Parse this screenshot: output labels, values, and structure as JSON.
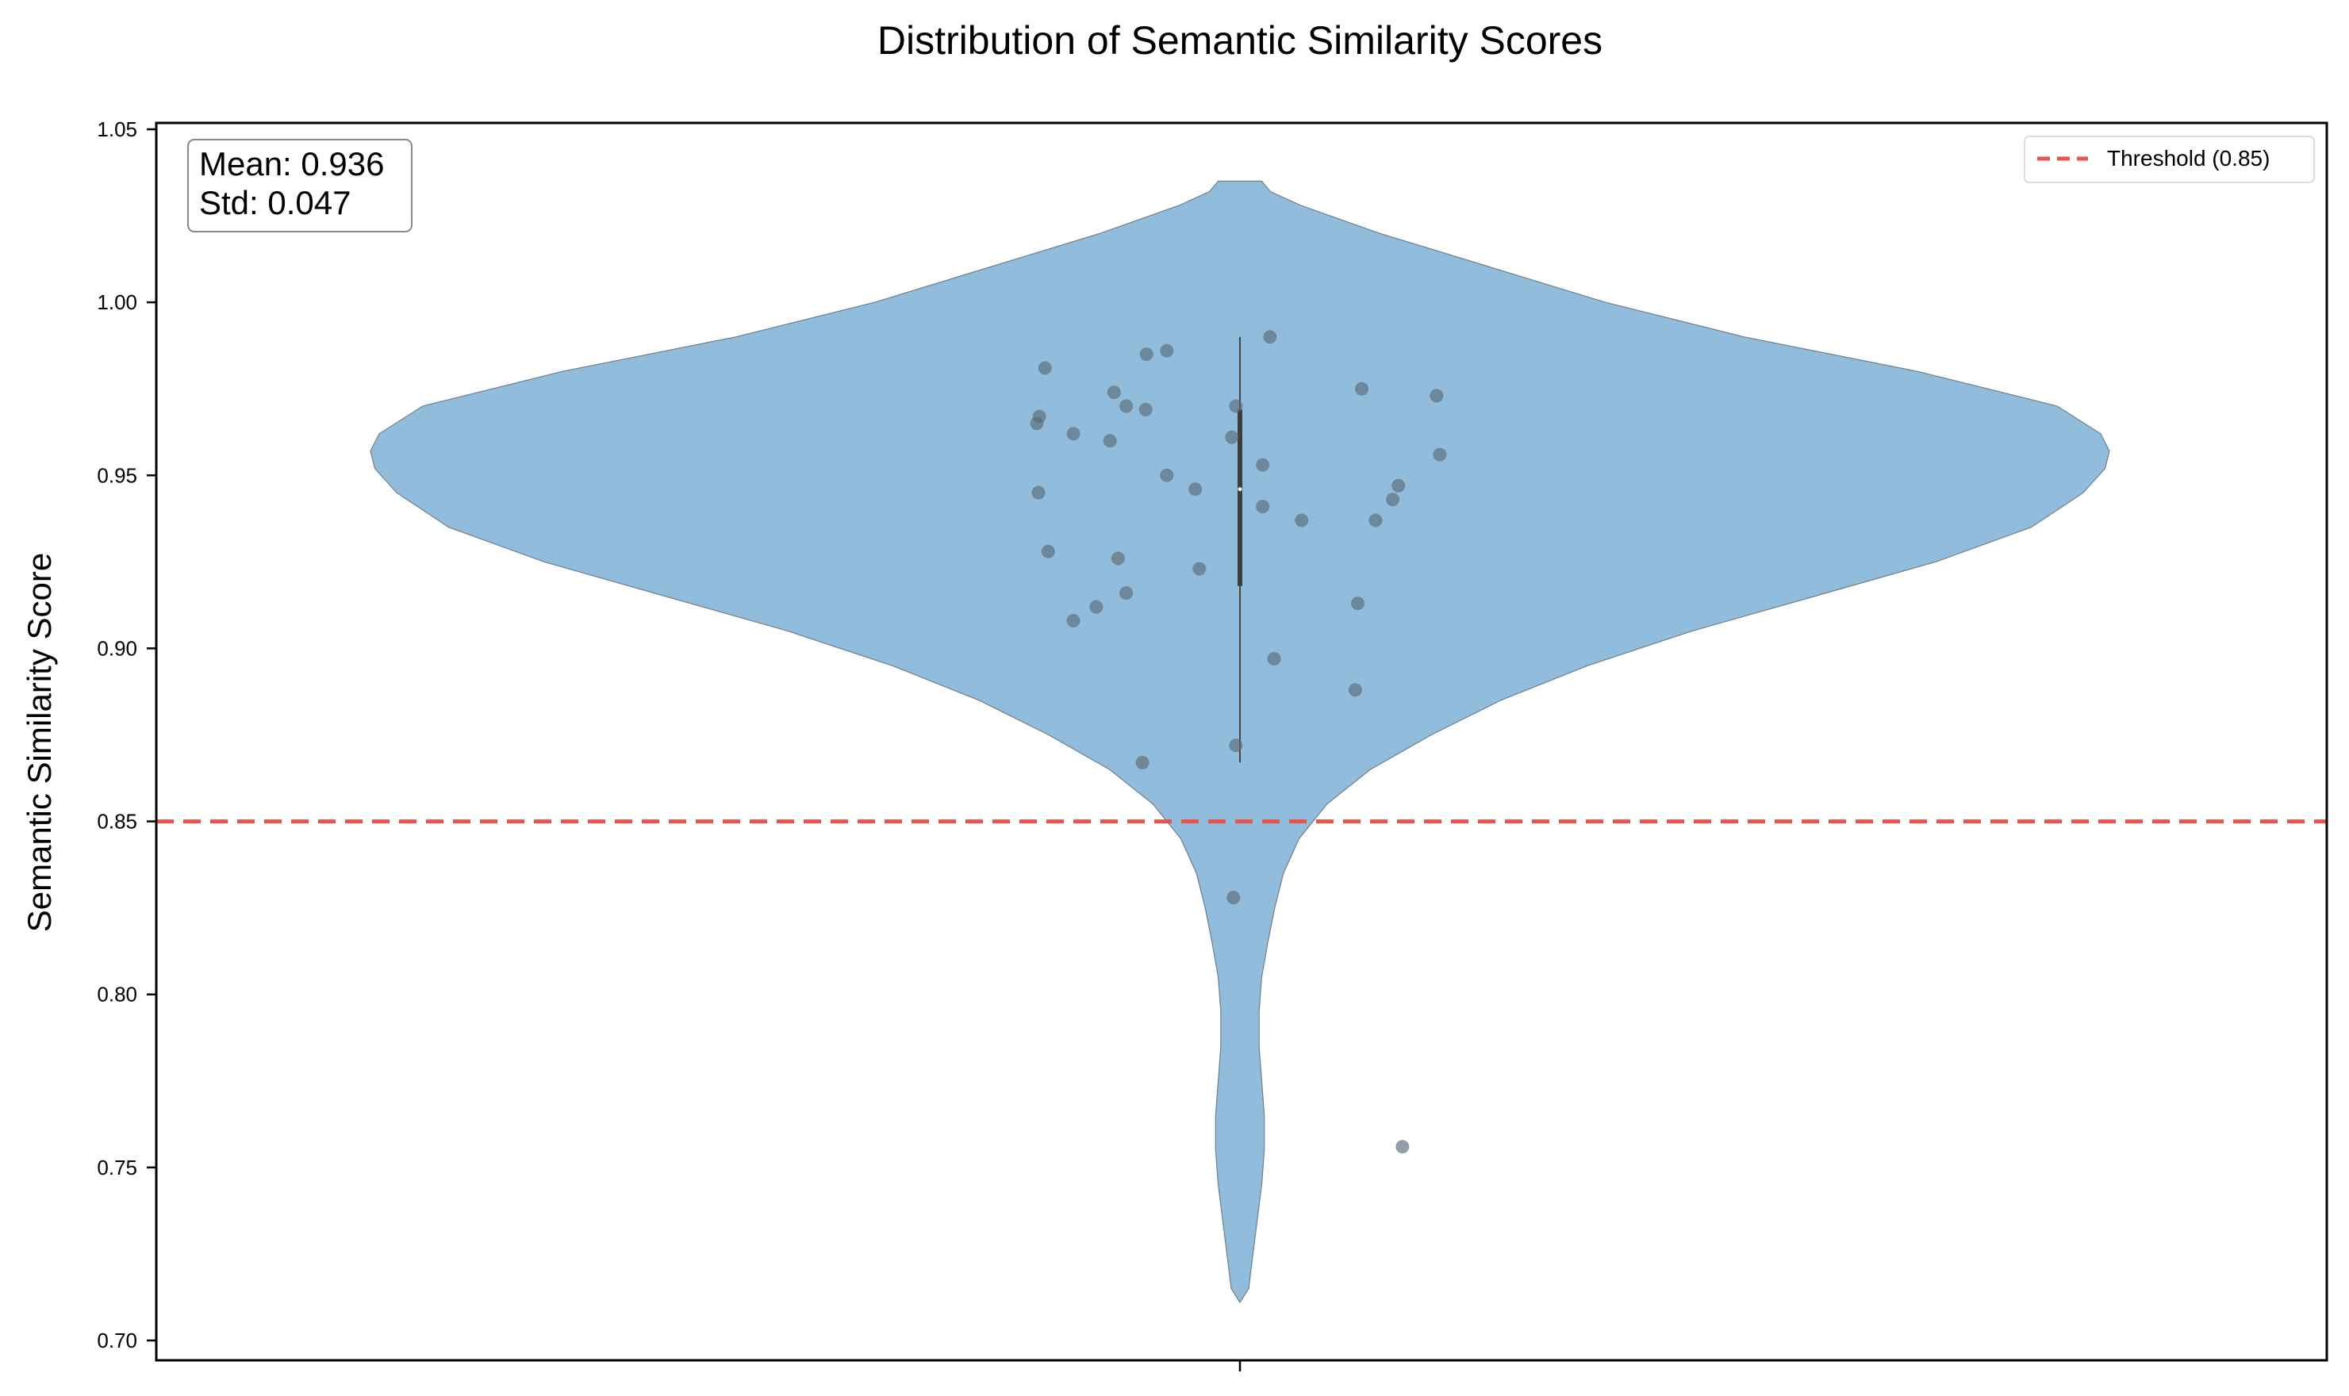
{
  "chart_data": {
    "type": "violin",
    "title": "Distribution of Semantic Similarity Scores",
    "xlabel": "",
    "ylabel": "Semantic Similarity Score",
    "ylim": [
      0.7,
      1.05
    ],
    "yticks": [
      "0.70",
      "0.75",
      "0.80",
      "0.85",
      "0.90",
      "0.95",
      "1.00",
      "1.05"
    ],
    "grid": false,
    "violin_color": "#91bcdb",
    "point_color": "#5a6a7a",
    "stats": {
      "mean_label": "Mean: 0.936",
      "std_label": "Std: 0.047"
    },
    "threshold": {
      "value": 0.85,
      "label": "Threshold (0.85)",
      "color": "#e8544a",
      "legend_position": "top-right"
    },
    "box": {
      "q1": 0.918,
      "median": 0.946,
      "q3": 0.969,
      "whisker_low": 0.867,
      "whisker_high": 0.99
    },
    "points": [
      {
        "x": -0.24,
        "y": 0.981
      },
      {
        "x": -0.247,
        "y": 0.967
      },
      {
        "x": -0.25,
        "y": 0.965
      },
      {
        "x": -0.205,
        "y": 0.962
      },
      {
        "x": -0.155,
        "y": 0.974
      },
      {
        "x": -0.14,
        "y": 0.97
      },
      {
        "x": -0.116,
        "y": 0.969
      },
      {
        "x": -0.16,
        "y": 0.96
      },
      {
        "x": -0.115,
        "y": 0.985
      },
      {
        "x": -0.09,
        "y": 0.986
      },
      {
        "x": -0.01,
        "y": 0.961
      },
      {
        "x": -0.005,
        "y": 0.97
      },
      {
        "x": 0.037,
        "y": 0.99
      },
      {
        "x": 0.15,
        "y": 0.975
      },
      {
        "x": 0.242,
        "y": 0.973
      },
      {
        "x": 0.246,
        "y": 0.956
      },
      {
        "x": -0.248,
        "y": 0.945
      },
      {
        "x": -0.09,
        "y": 0.95
      },
      {
        "x": -0.055,
        "y": 0.946
      },
      {
        "x": 0.028,
        "y": 0.953
      },
      {
        "x": 0.028,
        "y": 0.941
      },
      {
        "x": 0.076,
        "y": 0.937
      },
      {
        "x": 0.167,
        "y": 0.937
      },
      {
        "x": 0.188,
        "y": 0.943
      },
      {
        "x": 0.195,
        "y": 0.947
      },
      {
        "x": -0.236,
        "y": 0.928
      },
      {
        "x": -0.15,
        "y": 0.926
      },
      {
        "x": -0.05,
        "y": 0.923
      },
      {
        "x": -0.14,
        "y": 0.916
      },
      {
        "x": -0.177,
        "y": 0.912
      },
      {
        "x": -0.205,
        "y": 0.908
      },
      {
        "x": 0.145,
        "y": 0.913
      },
      {
        "x": 0.042,
        "y": 0.897
      },
      {
        "x": 0.142,
        "y": 0.888
      },
      {
        "x": -0.005,
        "y": 0.872
      },
      {
        "x": -0.12,
        "y": 0.867
      },
      {
        "x": -0.008,
        "y": 0.828
      },
      {
        "x": 0.2,
        "y": 0.756
      }
    ],
    "density_profile": [
      {
        "y": 0.711,
        "w": 0.0
      },
      {
        "y": 0.715,
        "w": 0.01
      },
      {
        "y": 0.725,
        "w": 0.015
      },
      {
        "y": 0.735,
        "w": 0.02
      },
      {
        "y": 0.745,
        "w": 0.025
      },
      {
        "y": 0.755,
        "w": 0.028
      },
      {
        "y": 0.765,
        "w": 0.028
      },
      {
        "y": 0.775,
        "w": 0.025
      },
      {
        "y": 0.785,
        "w": 0.022
      },
      {
        "y": 0.795,
        "w": 0.022
      },
      {
        "y": 0.805,
        "w": 0.025
      },
      {
        "y": 0.815,
        "w": 0.032
      },
      {
        "y": 0.825,
        "w": 0.04
      },
      {
        "y": 0.835,
        "w": 0.05
      },
      {
        "y": 0.845,
        "w": 0.068
      },
      {
        "y": 0.855,
        "w": 0.1
      },
      {
        "y": 0.865,
        "w": 0.15
      },
      {
        "y": 0.875,
        "w": 0.22
      },
      {
        "y": 0.885,
        "w": 0.3
      },
      {
        "y": 0.895,
        "w": 0.4
      },
      {
        "y": 0.905,
        "w": 0.52
      },
      {
        "y": 0.915,
        "w": 0.66
      },
      {
        "y": 0.925,
        "w": 0.8
      },
      {
        "y": 0.935,
        "w": 0.91
      },
      {
        "y": 0.945,
        "w": 0.97
      },
      {
        "y": 0.952,
        "w": 0.995
      },
      {
        "y": 0.957,
        "w": 1.0
      },
      {
        "y": 0.962,
        "w": 0.99
      },
      {
        "y": 0.97,
        "w": 0.94
      },
      {
        "y": 0.98,
        "w": 0.78
      },
      {
        "y": 0.99,
        "w": 0.58
      },
      {
        "y": 1.0,
        "w": 0.42
      },
      {
        "y": 1.01,
        "w": 0.29
      },
      {
        "y": 1.02,
        "w": 0.16
      },
      {
        "y": 1.028,
        "w": 0.07
      },
      {
        "y": 1.032,
        "w": 0.035
      },
      {
        "y": 1.035,
        "w": 0.025
      }
    ]
  }
}
